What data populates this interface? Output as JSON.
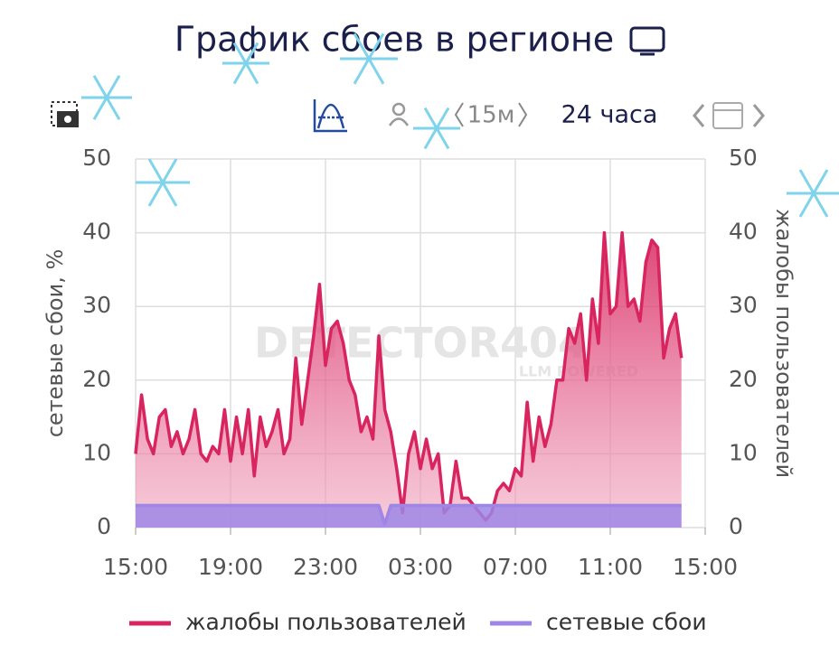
{
  "header": {
    "title": "График сбоев в регионе",
    "interval": "15м",
    "period": "24 часа"
  },
  "watermark": {
    "brand": "DETECTOR404",
    "tagline": "LLM POWERED"
  },
  "chart_data": {
    "type": "line",
    "ylabel": "сетевые сбои, %",
    "y2label": "жалобы пользователей",
    "xlim": [
      0,
      24
    ],
    "ylim": [
      0,
      50
    ],
    "y2lim": [
      0,
      50
    ],
    "xticks": [
      {
        "value": 0,
        "label": "15:00"
      },
      {
        "value": 4,
        "label": "19:00"
      },
      {
        "value": 8,
        "label": "23:00"
      },
      {
        "value": 12,
        "label": "03:00"
      },
      {
        "value": 16,
        "label": "07:00"
      },
      {
        "value": 20,
        "label": "11:00"
      },
      {
        "value": 24,
        "label": "15:00"
      }
    ],
    "yticks": [
      0,
      10,
      20,
      30,
      40,
      50
    ],
    "y2ticks": [
      0,
      10,
      20,
      30,
      40,
      50
    ],
    "grid": true,
    "x": [
      0,
      0.25,
      0.5,
      0.75,
      1,
      1.25,
      1.5,
      1.75,
      2,
      2.25,
      2.5,
      2.75,
      3,
      3.25,
      3.5,
      3.75,
      4,
      4.25,
      4.5,
      4.75,
      5,
      5.25,
      5.5,
      5.75,
      6,
      6.25,
      6.5,
      6.75,
      7,
      7.25,
      7.5,
      7.75,
      8,
      8.25,
      8.5,
      8.75,
      9,
      9.25,
      9.5,
      9.75,
      10,
      10.25,
      10.5,
      10.75,
      11,
      11.25,
      11.5,
      11.75,
      12,
      12.25,
      12.5,
      12.75,
      13,
      13.25,
      13.5,
      13.75,
      14,
      14.25,
      14.5,
      14.75,
      15,
      15.25,
      15.5,
      15.75,
      16,
      16.25,
      16.5,
      16.75,
      17,
      17.25,
      17.5,
      17.75,
      18,
      18.25,
      18.5,
      18.75,
      19,
      19.25,
      19.5,
      19.75,
      20,
      20.25,
      20.5,
      20.75,
      21,
      21.25,
      21.5,
      21.75,
      22,
      22.25,
      22.5,
      22.75,
      23
    ],
    "series": [
      {
        "name": "жалобы пользователей",
        "color": "#d8245f",
        "axis": "y2",
        "values": [
          10,
          18,
          12,
          10,
          15,
          16,
          11,
          13,
          10,
          12,
          16,
          10,
          9,
          11,
          10,
          16,
          9,
          15,
          10,
          16,
          7,
          15,
          11,
          13,
          16,
          10,
          12,
          23,
          14,
          20,
          26,
          33,
          22,
          27,
          28,
          25,
          20,
          18,
          13,
          15,
          12,
          26,
          16,
          13,
          8,
          2,
          10,
          13,
          8,
          12,
          8,
          10,
          2,
          3,
          9,
          4,
          4,
          3,
          2,
          1,
          2,
          5,
          6,
          5,
          8,
          7,
          17,
          9,
          15,
          11,
          14,
          20,
          20,
          27,
          25,
          29,
          20,
          31,
          25,
          40,
          29,
          30,
          40,
          30,
          31,
          28,
          36,
          39,
          38,
          23,
          27,
          29,
          23
        ]
      },
      {
        "name": "сетевые сбои",
        "color": "#9d86e6",
        "values": [
          3,
          3,
          3,
          3,
          3,
          3,
          3,
          3,
          3,
          3,
          3,
          3,
          3,
          3,
          3,
          3,
          3,
          3,
          3,
          3,
          3,
          3,
          3,
          3,
          3,
          3,
          3,
          3,
          3,
          3,
          3,
          3,
          3,
          3,
          3,
          3,
          3,
          3,
          3,
          3,
          3,
          3,
          0.5,
          3,
          3,
          3,
          3,
          3,
          3,
          3,
          3,
          3,
          3,
          3,
          3,
          3,
          3,
          3,
          3,
          3,
          3,
          3,
          3,
          3,
          3,
          3,
          3,
          3,
          3,
          3,
          3,
          3,
          3,
          3,
          3,
          3,
          3,
          3,
          3,
          3,
          3,
          3,
          3,
          3,
          3,
          3,
          3,
          3,
          3,
          3,
          3,
          3,
          3
        ]
      }
    ]
  }
}
